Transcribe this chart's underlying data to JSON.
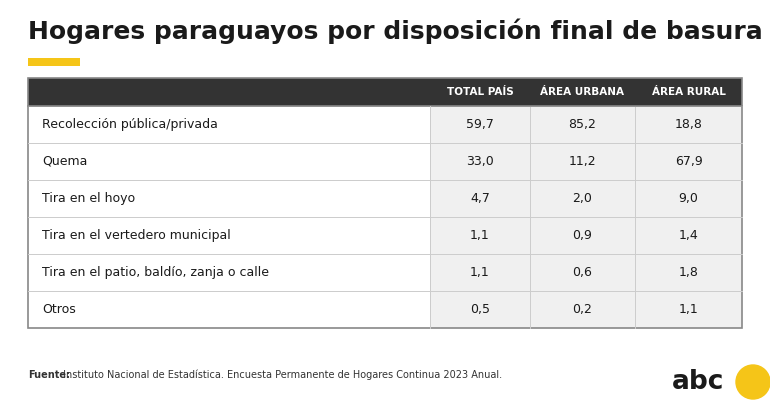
{
  "title": "Hogares paraguayos por disposición final de basura",
  "accent_color": "#F5C518",
  "header_bg": "#333333",
  "header_text_color": "#ffffff",
  "row_bg": "#f0f0f0",
  "label_bg": "#ffffff",
  "border_color": "#888888",
  "cell_border_color": "#cccccc",
  "columns": [
    "TOTAL PAÍS",
    "ÁREA URBANA",
    "ÁREA RURAL"
  ],
  "rows": [
    {
      "label": "Recolección pública/privada",
      "values": [
        "59,7",
        "85,2",
        "18,8"
      ]
    },
    {
      "label": "Quema",
      "values": [
        "33,0",
        "11,2",
        "67,9"
      ]
    },
    {
      "label": "Tira en el hoyo",
      "values": [
        "4,7",
        "2,0",
        "9,0"
      ]
    },
    {
      "label": "Tira en el vertedero municipal",
      "values": [
        "1,1",
        "0,9",
        "1,4"
      ]
    },
    {
      "label": "Tira en el patio, baldío, zanja o calle",
      "values": [
        "1,1",
        "0,6",
        "1,8"
      ]
    },
    {
      "label": "Otros",
      "values": [
        "0,5",
        "0,2",
        "1,1"
      ]
    }
  ],
  "footer_bold": "Fuente:",
  "footer_rest": " Instituto Nacional de Estadística. Encuesta Permanente de Hogares Continua 2023 Anual.",
  "background_color": "#ffffff",
  "title_fontsize": 18,
  "header_fontsize": 7.5,
  "row_fontsize": 9,
  "footer_fontsize": 7
}
